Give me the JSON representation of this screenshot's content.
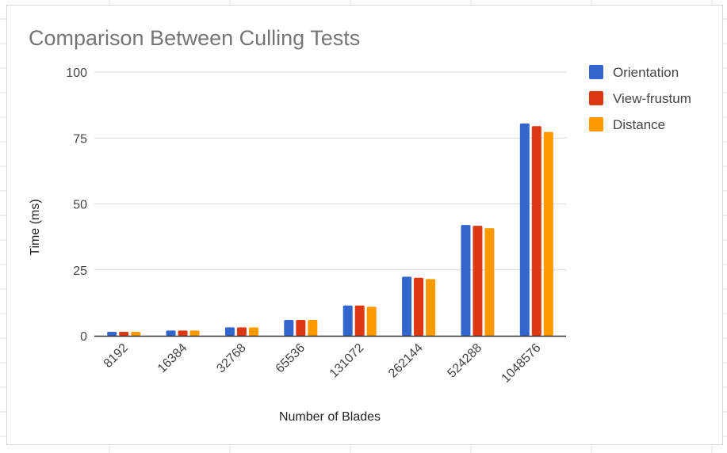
{
  "chart_data": {
    "type": "bar",
    "title": "Comparison Between Culling Tests",
    "xlabel": "Number of Blades",
    "ylabel": "Time (ms)",
    "ylim": [
      0,
      100
    ],
    "yticks": [
      "0",
      "25",
      "50",
      "75",
      "100"
    ],
    "categories": [
      "8192",
      "16384",
      "32768",
      "65536",
      "131072",
      "262144",
      "524288",
      "1048576"
    ],
    "series": [
      {
        "name": "Orientation",
        "color": "#3366cc",
        "values": [
          1.5,
          2.0,
          3.2,
          6.0,
          11.5,
          22.4,
          42.0,
          80.5
        ]
      },
      {
        "name": "View-frustum",
        "color": "#dc3912",
        "values": [
          1.5,
          2.0,
          3.2,
          6.0,
          11.5,
          22.0,
          41.7,
          79.5
        ]
      },
      {
        "name": "Distance",
        "color": "#ff9900",
        "values": [
          1.5,
          2.0,
          3.2,
          6.0,
          11.0,
          21.5,
          40.8,
          77.3
        ]
      }
    ],
    "grid": true,
    "legend": "right"
  }
}
